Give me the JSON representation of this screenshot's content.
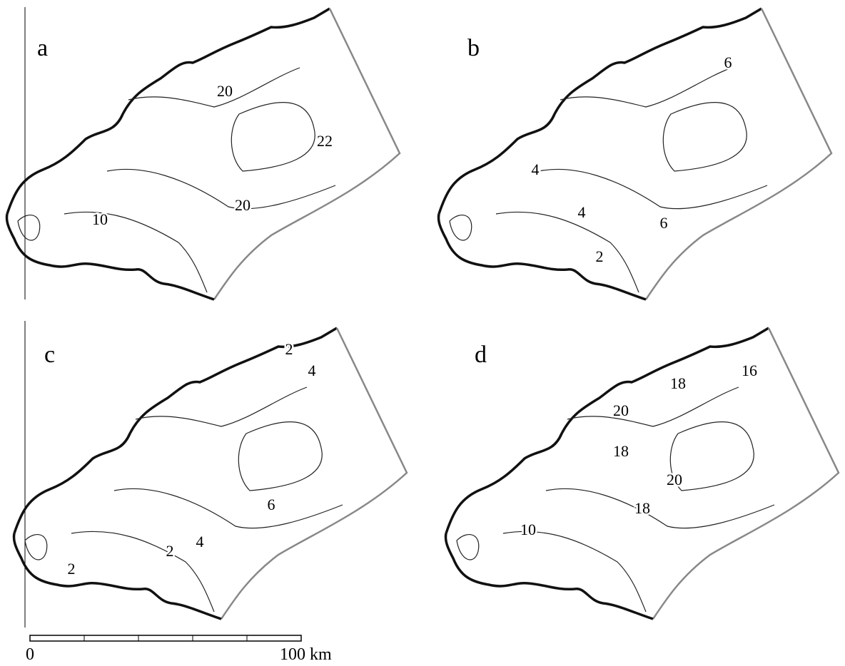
{
  "panels": [
    {
      "letter": "a",
      "contour_labels": [
        "20",
        "22",
        "20",
        "10"
      ]
    },
    {
      "letter": "b",
      "contour_labels": [
        "6",
        "4",
        "4",
        "6",
        "2"
      ]
    },
    {
      "letter": "c",
      "contour_labels": [
        "2",
        "4",
        "6",
        "4",
        "2",
        "2"
      ]
    },
    {
      "letter": "d",
      "contour_labels": [
        "16",
        "18",
        "20",
        "18",
        "20",
        "18",
        "10"
      ]
    }
  ],
  "scale_bar": {
    "start": "0",
    "end": "100 km"
  }
}
